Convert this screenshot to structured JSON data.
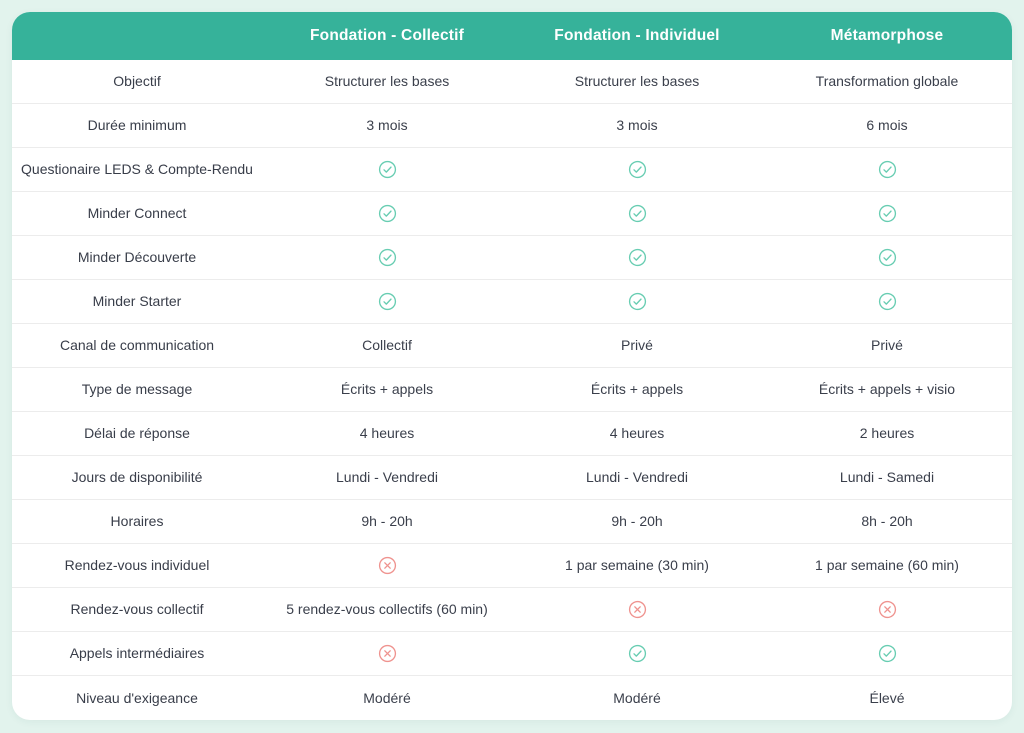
{
  "theme": {
    "page_background": "#e2f3ed",
    "card_background": "#ffffff",
    "header_background": "#36b29a",
    "header_text_color": "#ffffff",
    "body_text_color": "#3a3f4b",
    "divider_color": "#ececec",
    "check_color": "#68cdb2",
    "cross_color": "#ef938f"
  },
  "icons": {
    "check": "circle-check-icon",
    "cross": "circle-cross-icon"
  },
  "table": {
    "columns": [
      "Fondation - Collectif",
      "Fondation - Individuel",
      "Métamorphose"
    ],
    "rows": [
      {
        "label": "Objectif",
        "cells": [
          {
            "type": "text",
            "text": "Structurer les bases"
          },
          {
            "type": "text",
            "text": "Structurer les bases"
          },
          {
            "type": "text",
            "text": "Transformation globale"
          }
        ]
      },
      {
        "label": "Durée minimum",
        "cells": [
          {
            "type": "text",
            "text": "3 mois"
          },
          {
            "type": "text",
            "text": "3 mois"
          },
          {
            "type": "text",
            "text": "6 mois"
          }
        ]
      },
      {
        "label": "Questionaire LEDS & Compte-Rendu",
        "cells": [
          {
            "type": "check"
          },
          {
            "type": "check"
          },
          {
            "type": "check"
          }
        ]
      },
      {
        "label": "Minder Connect",
        "cells": [
          {
            "type": "check"
          },
          {
            "type": "check"
          },
          {
            "type": "check"
          }
        ]
      },
      {
        "label": "Minder Découverte",
        "cells": [
          {
            "type": "check"
          },
          {
            "type": "check"
          },
          {
            "type": "check"
          }
        ]
      },
      {
        "label": "Minder Starter",
        "cells": [
          {
            "type": "check"
          },
          {
            "type": "check"
          },
          {
            "type": "check"
          }
        ]
      },
      {
        "label": "Canal de communication",
        "cells": [
          {
            "type": "text",
            "text": "Collectif"
          },
          {
            "type": "text",
            "text": "Privé"
          },
          {
            "type": "text",
            "text": "Privé"
          }
        ]
      },
      {
        "label": "Type de message",
        "cells": [
          {
            "type": "text",
            "text": "Écrits + appels"
          },
          {
            "type": "text",
            "text": "Écrits + appels"
          },
          {
            "type": "text",
            "text": "Écrits + appels + visio"
          }
        ]
      },
      {
        "label": "Délai de réponse",
        "cells": [
          {
            "type": "text",
            "text": "4 heures"
          },
          {
            "type": "text",
            "text": "4 heures"
          },
          {
            "type": "text",
            "text": "2 heures"
          }
        ]
      },
      {
        "label": "Jours de disponibilité",
        "cells": [
          {
            "type": "text",
            "text": "Lundi - Vendredi"
          },
          {
            "type": "text",
            "text": "Lundi - Vendredi"
          },
          {
            "type": "text",
            "text": "Lundi - Samedi"
          }
        ]
      },
      {
        "label": "Horaires",
        "cells": [
          {
            "type": "text",
            "text": "9h - 20h"
          },
          {
            "type": "text",
            "text": "9h - 20h"
          },
          {
            "type": "text",
            "text": "8h - 20h"
          }
        ]
      },
      {
        "label": "Rendez-vous individuel",
        "cells": [
          {
            "type": "cross"
          },
          {
            "type": "text",
            "text": "1 par semaine (30 min)"
          },
          {
            "type": "text",
            "text": "1 par semaine (60 min)"
          }
        ]
      },
      {
        "label": "Rendez-vous collectif",
        "cells": [
          {
            "type": "text",
            "text": "5 rendez-vous collectifs (60 min)"
          },
          {
            "type": "cross"
          },
          {
            "type": "cross"
          }
        ]
      },
      {
        "label": "Appels intermédiaires",
        "cells": [
          {
            "type": "cross"
          },
          {
            "type": "check"
          },
          {
            "type": "check"
          }
        ]
      },
      {
        "label": "Niveau d'exigeance",
        "cells": [
          {
            "type": "text",
            "text": "Modéré"
          },
          {
            "type": "text",
            "text": "Modéré"
          },
          {
            "type": "text",
            "text": "Élevé"
          }
        ]
      }
    ]
  }
}
